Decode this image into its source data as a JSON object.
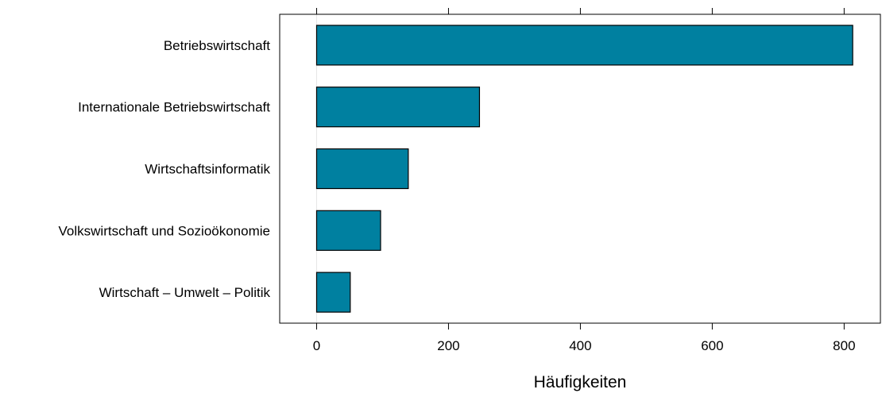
{
  "chart_data": {
    "type": "bar",
    "orientation": "horizontal",
    "categories": [
      "Betriebswirtschaft",
      "Internationale Betriebswirtschaft",
      "Wirtschaftsinformatik",
      "Volkswirtschaft und Sozioökonomie",
      "Wirtschaft – Umwelt – Politik"
    ],
    "values": [
      813,
      247,
      139,
      97,
      51
    ],
    "xlabel": "Häufigkeiten",
    "ylabel": "",
    "title": "",
    "xlim": [
      -56,
      855
    ],
    "xticks": [
      0,
      200,
      400,
      600,
      800
    ],
    "grid": false,
    "legend": "none",
    "colors": {
      "bar_fill": "#0080a0",
      "bar_stroke": "#000000",
      "zero_line": "#e6e6e6",
      "axis": "#000000"
    }
  }
}
